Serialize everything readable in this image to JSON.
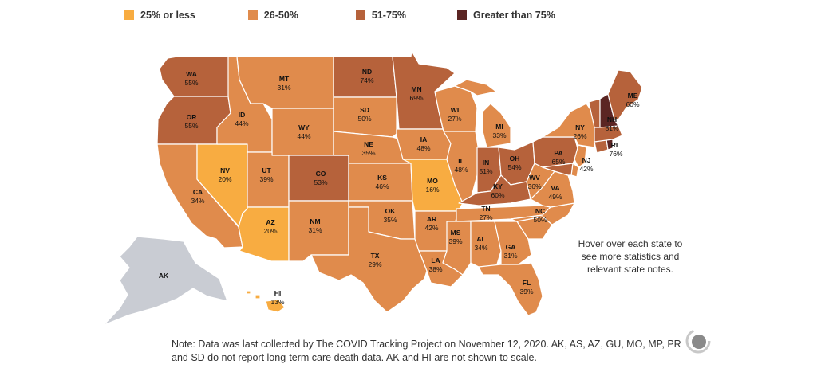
{
  "legend": [
    {
      "label": "25% or less",
      "color": "#f8ac41"
    },
    {
      "label": "26-50%",
      "color": "#e08b4c"
    },
    {
      "label": "51-75%",
      "color": "#b6623b"
    },
    {
      "label": "Greater than 75%",
      "color": "#5b2523"
    }
  ],
  "states": {
    "WA": {
      "code": "WA",
      "value": "55%",
      "color": "#b6623b"
    },
    "OR": {
      "code": "OR",
      "value": "55%",
      "color": "#b6623b"
    },
    "CA": {
      "code": "CA",
      "value": "34%",
      "color": "#e08b4c"
    },
    "NV": {
      "code": "NV",
      "value": "20%",
      "color": "#f8ac41"
    },
    "ID": {
      "code": "ID",
      "value": "44%",
      "color": "#e08b4c"
    },
    "MT": {
      "code": "MT",
      "value": "31%",
      "color": "#e08b4c"
    },
    "WY": {
      "code": "WY",
      "value": "44%",
      "color": "#e08b4c"
    },
    "UT": {
      "code": "UT",
      "value": "39%",
      "color": "#e08b4c"
    },
    "AZ": {
      "code": "AZ",
      "value": "20%",
      "color": "#f8ac41"
    },
    "CO": {
      "code": "CO",
      "value": "53%",
      "color": "#b6623b"
    },
    "NM": {
      "code": "NM",
      "value": "31%",
      "color": "#e08b4c"
    },
    "ND": {
      "code": "ND",
      "value": "74%",
      "color": "#b6623b"
    },
    "SD": {
      "code": "SD",
      "value": "50%",
      "color": "#e08b4c"
    },
    "NE": {
      "code": "NE",
      "value": "35%",
      "color": "#e08b4c"
    },
    "KS": {
      "code": "KS",
      "value": "46%",
      "color": "#e08b4c"
    },
    "OK": {
      "code": "OK",
      "value": "35%",
      "color": "#e08b4c"
    },
    "TX": {
      "code": "TX",
      "value": "29%",
      "color": "#e08b4c"
    },
    "MN": {
      "code": "MN",
      "value": "69%",
      "color": "#b6623b"
    },
    "IA": {
      "code": "IA",
      "value": "48%",
      "color": "#e08b4c"
    },
    "MO": {
      "code": "MO",
      "value": "16%",
      "color": "#f8ac41"
    },
    "AR": {
      "code": "AR",
      "value": "42%",
      "color": "#e08b4c"
    },
    "LA": {
      "code": "LA",
      "value": "38%",
      "color": "#e08b4c"
    },
    "WI": {
      "code": "WI",
      "value": "27%",
      "color": "#e08b4c"
    },
    "IL": {
      "code": "IL",
      "value": "48%",
      "color": "#e08b4c"
    },
    "MI": {
      "code": "MI",
      "value": "33%",
      "color": "#e08b4c"
    },
    "IN": {
      "code": "IN",
      "value": "51%",
      "color": "#b6623b"
    },
    "OH": {
      "code": "OH",
      "value": "54%",
      "color": "#b6623b"
    },
    "KY": {
      "code": "KY",
      "value": "60%",
      "color": "#b6623b"
    },
    "TN": {
      "code": "TN",
      "value": "27%",
      "color": "#e08b4c"
    },
    "MS": {
      "code": "MS",
      "value": "39%",
      "color": "#e08b4c"
    },
    "AL": {
      "code": "AL",
      "value": "34%",
      "color": "#e08b4c"
    },
    "GA": {
      "code": "GA",
      "value": "31%",
      "color": "#e08b4c"
    },
    "FL": {
      "code": "FL",
      "value": "39%",
      "color": "#e08b4c"
    },
    "SC": {
      "code": "SC",
      "value": "",
      "color": "#e08b4c"
    },
    "NC": {
      "code": "NC",
      "value": "50%",
      "color": "#e08b4c"
    },
    "VA": {
      "code": "VA",
      "value": "49%",
      "color": "#e08b4c"
    },
    "WV": {
      "code": "WV",
      "value": "36%",
      "color": "#e08b4c"
    },
    "PA": {
      "code": "PA",
      "value": "65%",
      "color": "#b6623b"
    },
    "NY": {
      "code": "NY",
      "value": "26%",
      "color": "#e08b4c"
    },
    "NJ": {
      "code": "NJ",
      "value": "42%",
      "color": "#e08b4c"
    },
    "MD": {
      "code": "MD",
      "value": "",
      "color": "#b6623b"
    },
    "DE": {
      "code": "DE",
      "value": "",
      "color": "#e08b4c"
    },
    "CT": {
      "code": "CT",
      "value": "",
      "color": "#b6623b"
    },
    "RI": {
      "code": "RI",
      "value": "76%",
      "color": "#5b2523"
    },
    "MA": {
      "code": "MA",
      "value": "",
      "color": "#b6623b"
    },
    "VT": {
      "code": "VT",
      "value": "",
      "color": "#b6623b"
    },
    "NH": {
      "code": "NH",
      "value": "81%",
      "color": "#5b2523"
    },
    "ME": {
      "code": "ME",
      "value": "60%",
      "color": "#b6623b"
    },
    "AK": {
      "code": "AK",
      "value": "",
      "color": "#c9ccd3"
    },
    "HI": {
      "code": "HI",
      "value": "13%",
      "color": "#f8ac41"
    }
  },
  "hover_note": "Hover over each state to see more statistics and relevant state notes.",
  "footer_note": "Note: Data was last collected by The COVID Tracking Project on November 12, 2020. AK, AS, AZ, GU, MO, MP, PR and SD do not report long-term care death data. AK and HI are not shown to scale.",
  "logo_icon": "loading-spinner-icon"
}
